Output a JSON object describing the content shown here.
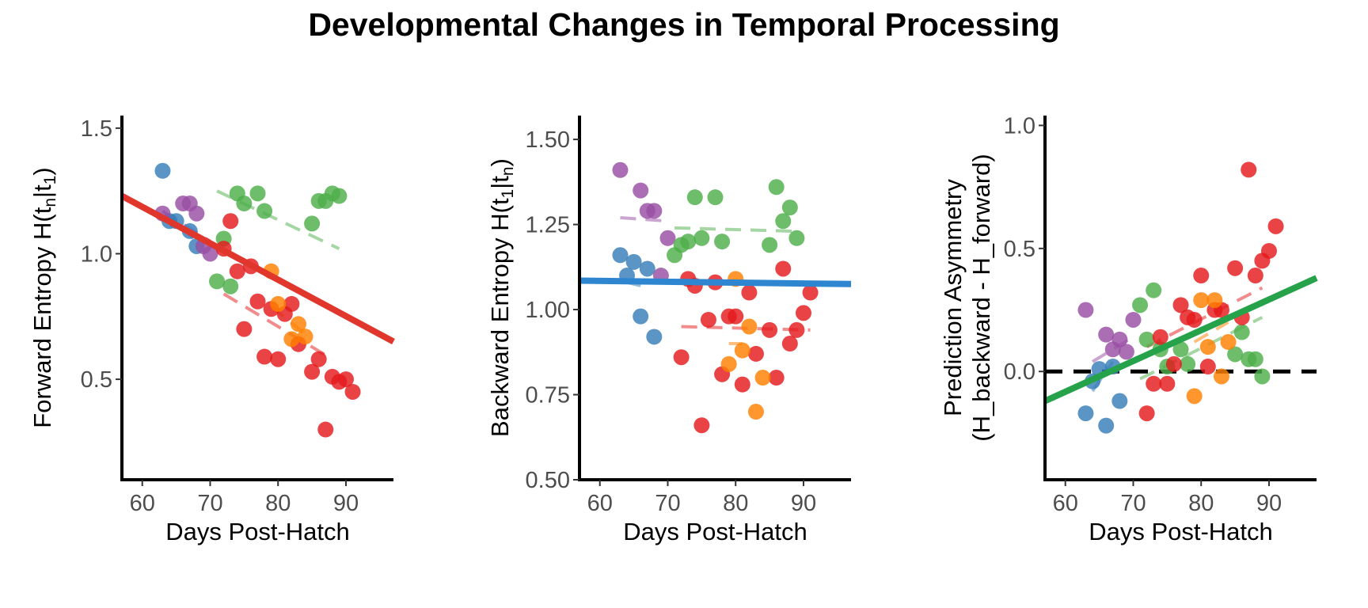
{
  "figure": {
    "title": "Developmental Changes in Temporal Processing"
  },
  "colors": {
    "bird_1": "#377EB8",
    "bird_2": "#984EA3",
    "bird_3": "#4DAF4A",
    "bird_4": "#E41A1C",
    "bird_5": "#FF7F00"
  },
  "chart_data": [
    {
      "type": "scatter",
      "title": "",
      "xlabel": "Days Post-Hatch",
      "ylabel": "Forward Entropy H(tn|t1)",
      "ylabel_main": "Forward Entropy H(t",
      "ylabel_sub1": "n",
      "ylabel_mid": "|t",
      "ylabel_sub2": "1",
      "ylabel_end": ")",
      "xlim": [
        57,
        97
      ],
      "ylim": [
        0.1,
        1.55
      ],
      "xticks": [
        60,
        70,
        80,
        90
      ],
      "yticks": [
        0.5,
        1.0,
        1.5
      ],
      "ytick_labels": [
        "0.5",
        "1.0",
        "1.5"
      ],
      "grid": false,
      "series": [
        {
          "color": "#377EB8",
          "points": [
            [
              63,
              1.33
            ],
            [
              64,
              1.13
            ],
            [
              65,
              1.13
            ],
            [
              67,
              1.09
            ],
            [
              68,
              1.03
            ]
          ],
          "fit": [
            [
              63,
              1.17
            ],
            [
              68,
              1.05
            ]
          ]
        },
        {
          "color": "#984EA3",
          "points": [
            [
              63,
              1.16
            ],
            [
              66,
              1.2
            ],
            [
              67,
              1.2
            ],
            [
              68,
              1.16
            ],
            [
              69,
              1.03
            ],
            [
              70,
              1.0
            ]
          ],
          "fit": [
            [
              63,
              1.17
            ],
            [
              70,
              1.05
            ]
          ]
        },
        {
          "color": "#4DAF4A",
          "points": [
            [
              71,
              0.89
            ],
            [
              72,
              1.06
            ],
            [
              73,
              0.87
            ],
            [
              74,
              1.24
            ],
            [
              75,
              1.2
            ],
            [
              77,
              1.24
            ],
            [
              78,
              1.17
            ],
            [
              85,
              1.12
            ],
            [
              86,
              1.21
            ],
            [
              87,
              1.21
            ],
            [
              88,
              1.24
            ],
            [
              89,
              1.23
            ]
          ],
          "fit": [
            [
              71,
              1.25
            ],
            [
              89,
              1.02
            ]
          ]
        },
        {
          "color": "#E41A1C",
          "points": [
            [
              72,
              1.02
            ],
            [
              73,
              1.13
            ],
            [
              74,
              0.93
            ],
            [
              75,
              0.7
            ],
            [
              76,
              0.95
            ],
            [
              77,
              0.81
            ],
            [
              78,
              0.59
            ],
            [
              79,
              0.78
            ],
            [
              80,
              0.58
            ],
            [
              81,
              0.76
            ],
            [
              82,
              0.8
            ],
            [
              83,
              0.64
            ],
            [
              85,
              0.53
            ],
            [
              86,
              0.58
            ],
            [
              87,
              0.3
            ],
            [
              88,
              0.51
            ],
            [
              89,
              0.49
            ],
            [
              90,
              0.5
            ],
            [
              91,
              0.45
            ]
          ],
          "fit": [
            [
              72,
              0.84
            ],
            [
              88,
              0.58
            ]
          ]
        },
        {
          "color": "#FF7F00",
          "points": [
            [
              79,
              0.93
            ],
            [
              80,
              0.8
            ],
            [
              82,
              0.66
            ],
            [
              83,
              0.72
            ],
            [
              84,
              0.67
            ]
          ],
          "fit": [
            [
              79,
              0.79
            ],
            [
              84,
              0.68
            ]
          ]
        }
      ],
      "trend": {
        "color": "#E0362C",
        "points": [
          [
            57,
            1.23
          ],
          [
            97,
            0.65
          ]
        ]
      }
    },
    {
      "type": "scatter",
      "title": "",
      "xlabel": "Days Post-Hatch",
      "ylabel": "Backward Entropy H(t1|tn)",
      "ylabel_main": "Backward Entropy H(t",
      "ylabel_sub1": "1",
      "ylabel_mid": "|t",
      "ylabel_sub2": "n",
      "ylabel_end": ")",
      "xlim": [
        57,
        97
      ],
      "ylim": [
        0.5,
        1.57
      ],
      "xticks": [
        60,
        70,
        80,
        90
      ],
      "yticks": [
        0.5,
        0.75,
        1.0,
        1.25,
        1.5
      ],
      "ytick_labels": [
        "0.50",
        "0.75",
        "1.00",
        "1.25",
        "1.50"
      ],
      "grid": false,
      "series": [
        {
          "color": "#377EB8",
          "points": [
            [
              63,
              1.16
            ],
            [
              64,
              1.1
            ],
            [
              65,
              1.14
            ],
            [
              66,
              0.98
            ],
            [
              67,
              1.12
            ],
            [
              68,
              0.92
            ]
          ],
          "fit": [
            [
              64,
              1.08
            ],
            [
              66,
              1.07
            ]
          ]
        },
        {
          "color": "#984EA3",
          "points": [
            [
              63,
              1.41
            ],
            [
              66,
              1.35
            ],
            [
              67,
              1.29
            ],
            [
              68,
              1.29
            ],
            [
              69,
              1.1
            ],
            [
              70,
              1.21
            ]
          ],
          "fit": [
            [
              63,
              1.27
            ],
            [
              70,
              1.26
            ]
          ]
        },
        {
          "color": "#4DAF4A",
          "points": [
            [
              71,
              1.16
            ],
            [
              72,
              1.19
            ],
            [
              73,
              1.2
            ],
            [
              74,
              1.33
            ],
            [
              75,
              1.21
            ],
            [
              77,
              1.33
            ],
            [
              78,
              1.2
            ],
            [
              85,
              1.19
            ],
            [
              86,
              1.36
            ],
            [
              87,
              1.26
            ],
            [
              88,
              1.3
            ],
            [
              89,
              1.21
            ]
          ],
          "fit": [
            [
              71,
              1.24
            ],
            [
              89,
              1.23
            ]
          ]
        },
        {
          "color": "#E41A1C",
          "points": [
            [
              72,
              0.86
            ],
            [
              73,
              1.09
            ],
            [
              74,
              1.07
            ],
            [
              75,
              0.66
            ],
            [
              76,
              0.97
            ],
            [
              77,
              1.08
            ],
            [
              78,
              0.81
            ],
            [
              79,
              0.98
            ],
            [
              80,
              0.98
            ],
            [
              81,
              0.78
            ],
            [
              82,
              1.05
            ],
            [
              83,
              0.87
            ],
            [
              85,
              0.94
            ],
            [
              86,
              0.8
            ],
            [
              87,
              1.12
            ],
            [
              88,
              0.9
            ],
            [
              89,
              0.94
            ],
            [
              90,
              0.99
            ],
            [
              91,
              1.05
            ]
          ],
          "fit": [
            [
              72,
              0.95
            ],
            [
              91,
              0.94
            ]
          ]
        },
        {
          "color": "#FF7F00",
          "points": [
            [
              79,
              0.84
            ],
            [
              80,
              1.09
            ],
            [
              81,
              0.88
            ],
            [
              82,
              0.95
            ],
            [
              83,
              0.7
            ],
            [
              84,
              0.8
            ]
          ],
          "fit": [
            [
              79,
              0.9
            ],
            [
              81,
              0.9
            ]
          ]
        }
      ],
      "trend": {
        "color": "#2F86D0",
        "points": [
          [
            57,
            1.085
          ],
          [
            97,
            1.075
          ]
        ]
      }
    },
    {
      "type": "scatter",
      "title": "",
      "xlabel": "Days Post-Hatch",
      "ylabel": "Prediction Asymmetry (H_backward - H_forward)",
      "ylabel_line1": "Prediction Asymmetry",
      "ylabel_line2": "(H_backward - H_forward)",
      "xlim": [
        57,
        97
      ],
      "ylim": [
        -0.44,
        1.04
      ],
      "xticks": [
        60,
        70,
        80,
        90
      ],
      "yticks": [
        0.0,
        0.5,
        1.0
      ],
      "ytick_labels": [
        "0.0",
        "0.5",
        "1.0"
      ],
      "grid": false,
      "reference_line": {
        "y": 0,
        "style": "dashed",
        "color": "#000000"
      },
      "series": [
        {
          "color": "#377EB8",
          "points": [
            [
              63,
              -0.17
            ],
            [
              64,
              -0.04
            ],
            [
              65,
              0.01
            ],
            [
              66,
              -0.22
            ],
            [
              67,
              0.02
            ],
            [
              68,
              -0.12
            ]
          ],
          "fit": [
            [
              64,
              -0.08
            ],
            [
              67,
              0.04
            ]
          ]
        },
        {
          "color": "#984EA3",
          "points": [
            [
              63,
              0.25
            ],
            [
              66,
              0.15
            ],
            [
              67,
              0.09
            ],
            [
              68,
              0.13
            ],
            [
              69,
              0.08
            ],
            [
              70,
              0.21
            ]
          ],
          "fit": [
            [
              64,
              0.04
            ],
            [
              70,
              0.14
            ]
          ]
        },
        {
          "color": "#4DAF4A",
          "points": [
            [
              71,
              0.27
            ],
            [
              72,
              0.13
            ],
            [
              73,
              0.33
            ],
            [
              74,
              0.09
            ],
            [
              75,
              0.02
            ],
            [
              77,
              0.09
            ],
            [
              78,
              0.03
            ],
            [
              85,
              0.07
            ],
            [
              86,
              0.16
            ],
            [
              87,
              0.05
            ],
            [
              88,
              0.05
            ],
            [
              89,
              -0.02
            ]
          ],
          "fit": [
            [
              71,
              -0.03
            ],
            [
              89,
              0.22
            ]
          ]
        },
        {
          "color": "#E41A1C",
          "points": [
            [
              72,
              -0.17
            ],
            [
              73,
              -0.05
            ],
            [
              74,
              0.14
            ],
            [
              75,
              -0.05
            ],
            [
              76,
              0.03
            ],
            [
              77,
              0.27
            ],
            [
              78,
              0.22
            ],
            [
              79,
              0.21
            ],
            [
              80,
              0.39
            ],
            [
              81,
              0.02
            ],
            [
              82,
              0.25
            ],
            [
              83,
              0.25
            ],
            [
              85,
              0.42
            ],
            [
              86,
              0.22
            ],
            [
              87,
              0.82
            ],
            [
              88,
              0.39
            ],
            [
              89,
              0.45
            ],
            [
              90,
              0.49
            ],
            [
              91,
              0.59
            ]
          ],
          "fit": [
            [
              72,
              0.1
            ],
            [
              89,
              0.34
            ]
          ]
        },
        {
          "color": "#FF7F00",
          "points": [
            [
              79,
              -0.1
            ],
            [
              80,
              0.29
            ],
            [
              81,
              0.1
            ],
            [
              82,
              0.29
            ],
            [
              83,
              -0.02
            ],
            [
              84,
              0.12
            ]
          ],
          "fit": [
            [
              79,
              0.12
            ],
            [
              84,
              0.2
            ]
          ]
        }
      ],
      "trend": {
        "color": "#25A24A",
        "points": [
          [
            57,
            -0.12
          ],
          [
            97,
            0.38
          ]
        ]
      }
    }
  ]
}
